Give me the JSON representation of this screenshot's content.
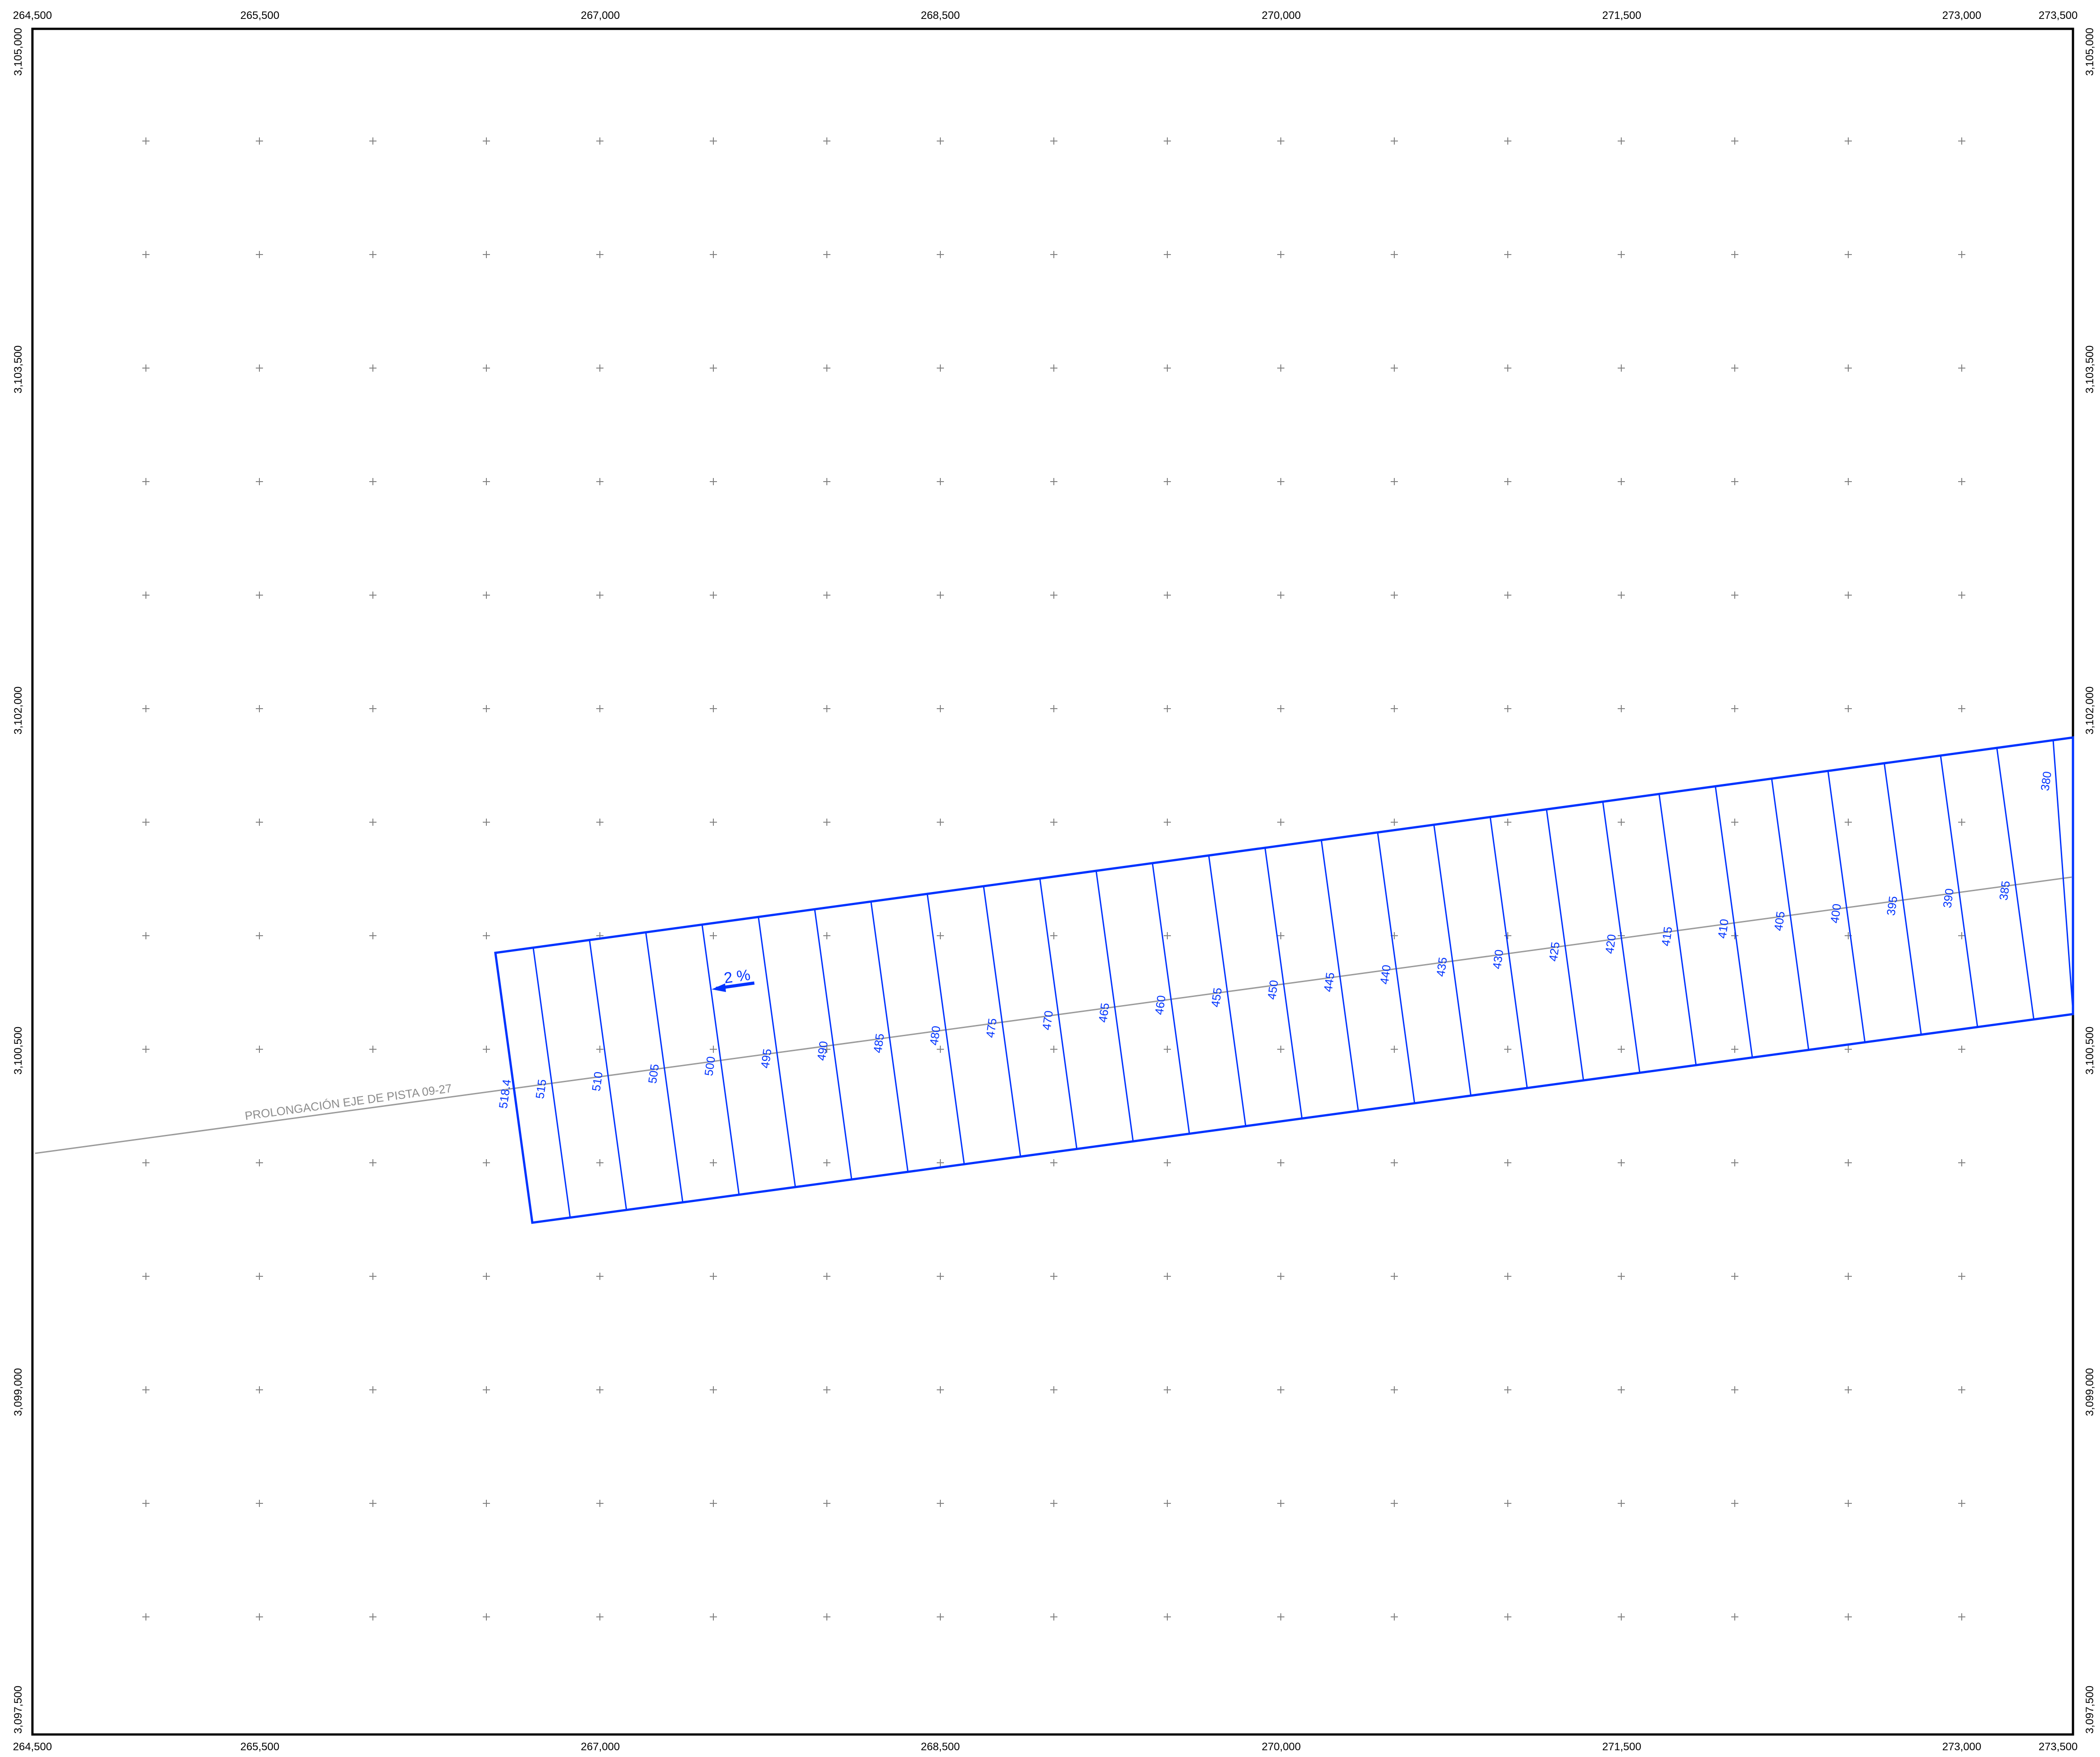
{
  "map": {
    "x_labels_top": [
      "264,500",
      "265,500",
      "267,000",
      "268,500",
      "270,000",
      "271,500",
      "273,000",
      "273,500"
    ],
    "x_labels_bottom": [
      "264,500",
      "265,500",
      "267,000",
      "268,500",
      "270,000",
      "271,500",
      "273,000",
      "273,500"
    ],
    "y_labels_left": [
      "3,105,000",
      "3,103,500",
      "3,102,000",
      "3,100,500",
      "3,099,000",
      "3,097,500"
    ],
    "y_labels_right": [
      "3,105,000",
      "3,103,500",
      "3,102,000",
      "3,100,500",
      "3,099,000",
      "3,097,500"
    ],
    "centerline_label": "PROLONGACIÓN EJE DE PISTA 09-27",
    "slope_label": "2 %",
    "contour_labels": [
      "518.4",
      "515",
      "510",
      "505",
      "500",
      "495",
      "490",
      "485",
      "480",
      "475",
      "470",
      "465",
      "460",
      "455",
      "450",
      "445",
      "440",
      "435",
      "430",
      "425",
      "420",
      "415",
      "410",
      "405",
      "400",
      "395",
      "390",
      "385",
      "380"
    ],
    "colors": {
      "surface": "#0033ff",
      "centerline": "#9a9a9a",
      "grid_cross": "#7f7f7f",
      "frame": "#000000"
    },
    "icons": {
      "grid_marker": "plus-cross",
      "slope_direction": "arrow-left"
    }
  }
}
